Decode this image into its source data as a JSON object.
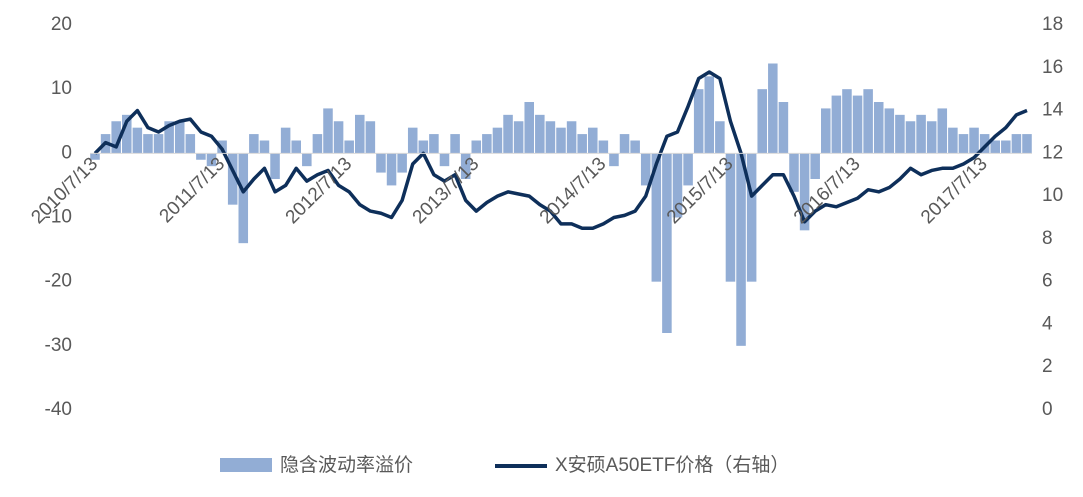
{
  "chart_data": {
    "type": "bar_line",
    "categories": [
      "2010/7/13",
      null,
      null,
      null,
      null,
      null,
      null,
      null,
      null,
      null,
      null,
      null,
      "2011/7/13",
      null,
      null,
      null,
      null,
      null,
      null,
      null,
      null,
      null,
      null,
      null,
      "2012/7/13",
      null,
      null,
      null,
      null,
      null,
      null,
      null,
      null,
      null,
      null,
      null,
      "2013/7/13",
      null,
      null,
      null,
      null,
      null,
      null,
      null,
      null,
      null,
      null,
      null,
      "2014/7/13",
      null,
      null,
      null,
      null,
      null,
      null,
      null,
      null,
      null,
      null,
      null,
      "2015/7/13",
      null,
      null,
      null,
      null,
      null,
      null,
      null,
      null,
      null,
      null,
      null,
      "2016/7/13",
      null,
      null,
      null,
      null,
      null,
      null,
      null,
      null,
      null,
      null,
      null,
      "2017/7/13",
      null,
      null,
      null,
      null
    ],
    "series": [
      {
        "name": "隐含波动率溢价",
        "color": "#92add5",
        "kind": "bar",
        "values": [
          -1,
          3,
          5,
          6,
          4,
          3,
          3,
          5,
          5,
          3,
          -1,
          -2,
          2,
          -8,
          -14,
          3,
          2,
          -4,
          4,
          2,
          -2,
          3,
          7,
          5,
          2,
          6,
          5,
          -3,
          -5,
          -3,
          4,
          2,
          3,
          -2,
          3,
          -4,
          2,
          3,
          4,
          6,
          5,
          8,
          6,
          5,
          4,
          5,
          3,
          4,
          2,
          -2,
          3,
          2,
          -5,
          -20,
          -28,
          -10,
          -5,
          10,
          12,
          5,
          -20,
          -30,
          -20,
          10,
          14,
          8,
          -6,
          -12,
          -4,
          7,
          9,
          10,
          9,
          10,
          8,
          7,
          6,
          5,
          6,
          5,
          7,
          4,
          3,
          4,
          3,
          2,
          2,
          3,
          3
        ]
      },
      {
        "name": "X安硕A50ETF价格（右轴）",
        "color": "#0e2f5a",
        "kind": "line",
        "axis": "y2",
        "values": [
          12.0,
          12.5,
          12.3,
          13.5,
          14.0,
          13.2,
          13.0,
          13.3,
          13.5,
          13.6,
          13.0,
          12.8,
          12.2,
          11.2,
          10.2,
          10.8,
          11.3,
          10.2,
          10.5,
          11.3,
          10.7,
          11.0,
          11.2,
          10.5,
          10.2,
          9.6,
          9.3,
          9.2,
          9.0,
          9.8,
          11.5,
          12.0,
          11.0,
          10.7,
          11.0,
          9.8,
          9.3,
          9.7,
          10.0,
          10.2,
          10.1,
          10.0,
          9.6,
          9.3,
          8.7,
          8.7,
          8.5,
          8.5,
          8.7,
          9.0,
          9.1,
          9.3,
          10.0,
          11.5,
          12.8,
          13.0,
          14.2,
          15.5,
          15.8,
          15.5,
          13.5,
          12.0,
          10.0,
          10.5,
          11.0,
          11.0,
          10.0,
          8.8,
          9.3,
          9.6,
          9.5,
          9.7,
          9.9,
          10.3,
          10.2,
          10.4,
          10.8,
          11.3,
          11.0,
          11.2,
          11.3,
          11.3,
          11.5,
          11.8,
          12.3,
          12.8,
          13.2,
          13.8,
          14.0
        ]
      }
    ],
    "ylim": [
      -40,
      20
    ],
    "yticks": [
      -40,
      -30,
      -20,
      -10,
      0,
      10,
      20
    ],
    "y2lim": [
      0,
      18
    ],
    "y2ticks": [
      0,
      2,
      4,
      6,
      8,
      10,
      12,
      14,
      16,
      18
    ]
  }
}
